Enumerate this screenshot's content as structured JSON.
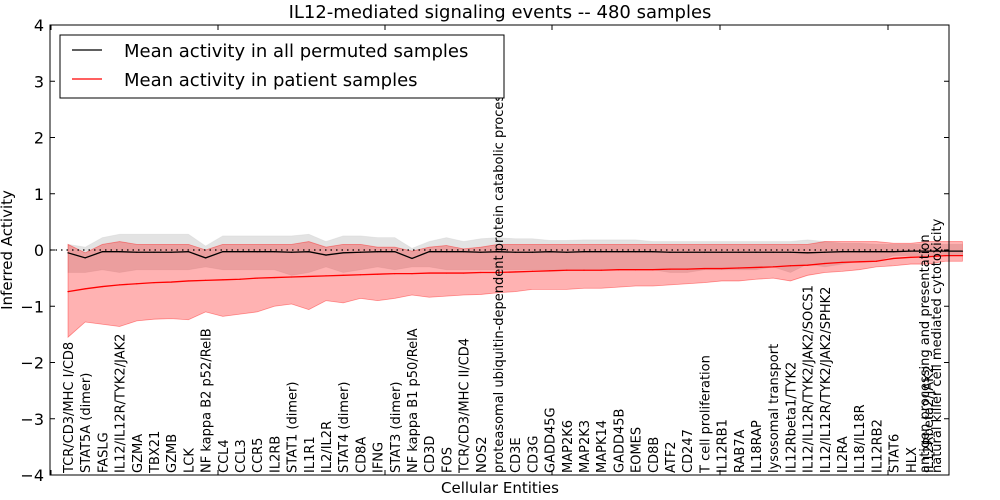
{
  "chart_data": {
    "type": "line",
    "title": "IL12-mediated signaling events -- 480 samples",
    "xlabel": "Cellular Entities",
    "ylabel": "Inferred Activity",
    "ylim": [
      -4,
      4
    ],
    "yticks": [
      "4",
      "3",
      "2",
      "1",
      "0",
      "−1",
      "−2",
      "−3",
      "−4"
    ],
    "ytick_values": [
      4,
      3,
      2,
      1,
      0,
      -1,
      -2,
      -3,
      -4
    ],
    "grid": false,
    "zero_reference_line": "dotted",
    "legend": {
      "placement": "top-left",
      "entries": [
        {
          "label": "Mean activity in all permuted samples",
          "color": "#000000"
        },
        {
          "label": "Mean activity in patient samples",
          "color": "#ff0000"
        }
      ]
    },
    "categories": [
      "TCR/CD3/MHC I/CD8",
      "STAT5A (dimer)",
      "FASLG",
      "IL12/IL12R/TYK2/JAK2",
      "GZMA",
      "TBX21",
      "GZMB",
      "LCK",
      "NF kappa B2 p52/RelB",
      "CCL4",
      "CCL3",
      "CCR5",
      "IL2RB",
      "STAT1 (dimer)",
      "IL1R1",
      "IL2/IL2R",
      "STAT4 (dimer)",
      "CD8A",
      "IFNG",
      "STAT3 (dimer)",
      "NF kappa B1 p50/RelA",
      "CD3D",
      "FOS",
      "TCR/CD3/MHC II/CD4",
      "NOS2",
      "proteasomal ubiquitin-dependent protein catabolic process",
      "CD3E",
      "CD3G",
      "GADD45G",
      "MAP2K6",
      "MAP2K3",
      "MAPK14",
      "GADD45B",
      "EOMES",
      "CD8B",
      "ATF2",
      "CD247",
      "T cell proliferation",
      "IL12RB1",
      "RAB7A",
      "IL18RAP",
      "lysosomal transport",
      "IL12Rbeta1/TYK2",
      "IL12/IL12R/TYK2/JAK2/SOCS1",
      "IL12/IL12R/TYK2/JAK2/SPHK2",
      "IL2RA",
      "IL18/IL18R",
      "IL12RB2",
      "STAT6",
      "HLX",
      "IL12Rbeta2/JAK2",
      "antigen processing and presentation",
      "natural killer cell mediated cytotoxicity"
    ],
    "series": [
      {
        "name": "Mean activity in all permuted samples",
        "color": "#000000",
        "values": [
          -0.05,
          -0.14,
          -0.03,
          -0.03,
          -0.04,
          -0.04,
          -0.04,
          -0.03,
          -0.14,
          -0.03,
          -0.03,
          -0.03,
          -0.03,
          -0.04,
          -0.03,
          -0.09,
          -0.05,
          -0.04,
          -0.03,
          -0.03,
          -0.15,
          -0.03,
          -0.03,
          -0.03,
          -0.04,
          -0.03,
          -0.04,
          -0.04,
          -0.03,
          -0.04,
          -0.03,
          -0.03,
          -0.03,
          -0.03,
          -0.03,
          -0.04,
          -0.04,
          -0.04,
          -0.04,
          -0.04,
          -0.04,
          -0.04,
          -0.04,
          -0.05,
          -0.04,
          -0.03,
          -0.03,
          -0.03,
          -0.03,
          -0.02,
          -0.02,
          -0.02,
          -0.02
        ],
        "band_upper": [
          0.1,
          0.05,
          0.22,
          0.28,
          0.28,
          0.28,
          0.28,
          0.28,
          0.07,
          0.25,
          0.25,
          0.25,
          0.25,
          0.25,
          0.28,
          0.15,
          0.25,
          0.25,
          0.22,
          0.22,
          0.03,
          0.15,
          0.22,
          0.15,
          0.2,
          0.22,
          0.2,
          0.2,
          0.17,
          0.17,
          0.18,
          0.18,
          0.18,
          0.18,
          0.15,
          0.15,
          0.15,
          0.15,
          0.15,
          0.15,
          0.15,
          0.15,
          0.15,
          0.18,
          0.15,
          0.12,
          0.12,
          0.1,
          0.1,
          0.1,
          0.1,
          0.1,
          0.1
        ],
        "band_lower": [
          -0.4,
          -0.4,
          -0.35,
          -0.4,
          -0.35,
          -0.35,
          -0.35,
          -0.35,
          -0.3,
          -0.35,
          -0.35,
          -0.35,
          -0.35,
          -0.45,
          -0.4,
          -0.3,
          -0.4,
          -0.35,
          -0.3,
          -0.35,
          -0.3,
          -0.3,
          -0.35,
          -0.35,
          -0.35,
          -0.35,
          -0.35,
          -0.35,
          -0.35,
          -0.35,
          -0.35,
          -0.35,
          -0.35,
          -0.35,
          -0.35,
          -0.4,
          -0.4,
          -0.35,
          -0.35,
          -0.35,
          -0.35,
          -0.3,
          -0.4,
          -0.25,
          -0.3,
          -0.25,
          -0.2,
          -0.2,
          -0.1,
          -0.1,
          -0.1,
          -0.1,
          -0.1
        ]
      },
      {
        "name": "Mean activity in patient samples",
        "color": "#ff0000",
        "values": [
          -0.74,
          -0.69,
          -0.65,
          -0.62,
          -0.6,
          -0.58,
          -0.57,
          -0.55,
          -0.54,
          -0.53,
          -0.52,
          -0.5,
          -0.49,
          -0.48,
          -0.47,
          -0.46,
          -0.45,
          -0.44,
          -0.43,
          -0.42,
          -0.42,
          -0.41,
          -0.41,
          -0.41,
          -0.4,
          -0.4,
          -0.39,
          -0.38,
          -0.37,
          -0.36,
          -0.36,
          -0.36,
          -0.35,
          -0.35,
          -0.35,
          -0.34,
          -0.34,
          -0.33,
          -0.33,
          -0.32,
          -0.31,
          -0.3,
          -0.28,
          -0.27,
          -0.24,
          -0.22,
          -0.21,
          -0.2,
          -0.15,
          -0.13,
          -0.12,
          -0.1,
          -0.1
        ],
        "band_upper": [
          0.1,
          -0.05,
          0.1,
          0.15,
          0.1,
          0.1,
          0.1,
          0.1,
          0.0,
          0.1,
          0.1,
          0.1,
          0.1,
          0.1,
          0.15,
          0.05,
          0.1,
          0.1,
          0.05,
          0.05,
          -0.02,
          0.05,
          0.08,
          0.02,
          0.05,
          0.1,
          0.1,
          0.1,
          0.1,
          0.1,
          0.1,
          0.1,
          0.1,
          0.1,
          0.1,
          0.1,
          0.1,
          0.1,
          0.1,
          0.1,
          0.1,
          0.1,
          0.1,
          0.1,
          0.15,
          0.15,
          0.15,
          0.15,
          0.12,
          0.12,
          0.15,
          0.15,
          0.15
        ],
        "band_lower": [
          -1.55,
          -1.28,
          -1.32,
          -1.36,
          -1.26,
          -1.23,
          -1.22,
          -1.24,
          -1.1,
          -1.18,
          -1.14,
          -1.1,
          -1.0,
          -0.96,
          -1.06,
          -0.9,
          -0.94,
          -0.86,
          -0.9,
          -0.86,
          -0.8,
          -0.84,
          -0.82,
          -0.8,
          -0.79,
          -0.76,
          -0.74,
          -0.7,
          -0.7,
          -0.7,
          -0.68,
          -0.68,
          -0.66,
          -0.64,
          -0.64,
          -0.62,
          -0.6,
          -0.58,
          -0.55,
          -0.55,
          -0.52,
          -0.5,
          -0.55,
          -0.45,
          -0.4,
          -0.38,
          -0.35,
          -0.3,
          -0.28,
          -0.25,
          -0.25,
          -0.2,
          -0.2
        ]
      }
    ]
  }
}
